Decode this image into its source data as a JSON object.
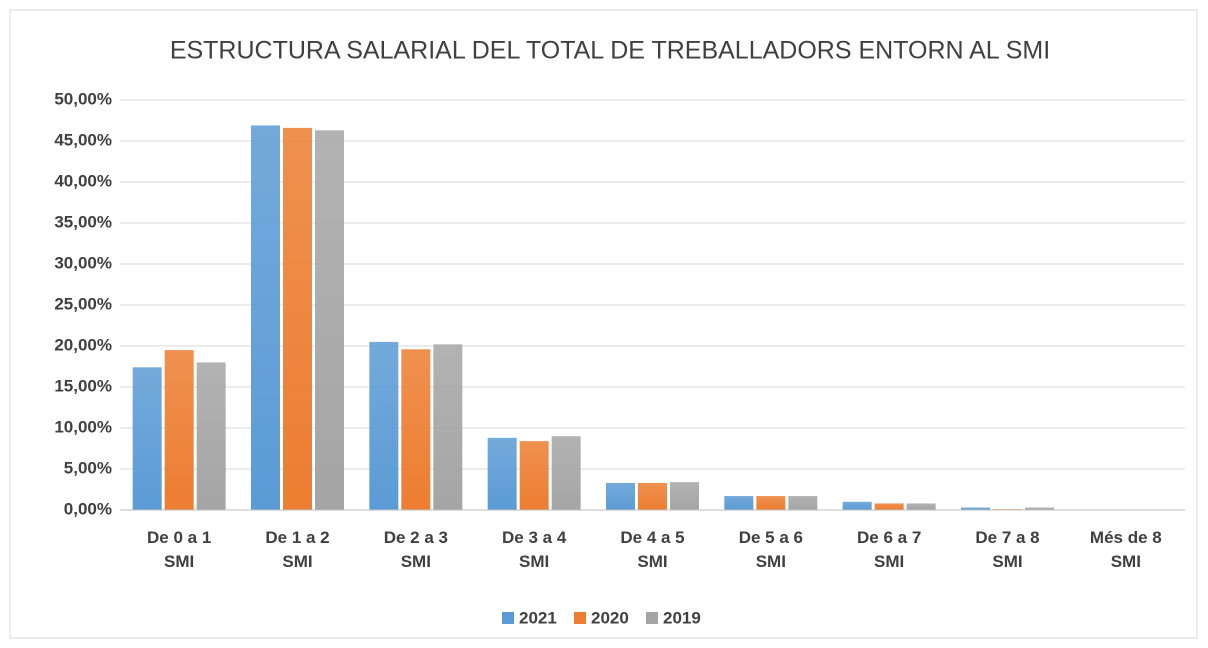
{
  "chart_data": {
    "type": "bar",
    "title": "ESTRUCTURA SALARIAL DEL TOTAL DE TREBALLADORS ENTORN AL SMI",
    "categories": [
      "De 0 a 1 SMI",
      "De 1 a 2 SMI",
      "De 2 a 3 SMI",
      "De 3 a 4 SMI",
      "De 4 a 5 SMI",
      "De 5 a 6 SMI",
      "De 6 a 7 SMI",
      "De 7 a 8 SMI",
      "Més de 8 SMI"
    ],
    "series": [
      {
        "name": "2021",
        "color": "#5b9bd5",
        "values": [
          17.4,
          46.9,
          20.5,
          8.8,
          3.3,
          1.7,
          1.0,
          0.3,
          0.05
        ]
      },
      {
        "name": "2020",
        "color": "#ed7d31",
        "values": [
          19.5,
          46.6,
          19.6,
          8.4,
          3.3,
          1.7,
          0.8,
          0.1,
          0.03
        ]
      },
      {
        "name": "2019",
        "color": "#a5a5a5",
        "values": [
          18.0,
          46.3,
          20.2,
          9.0,
          3.4,
          1.7,
          0.8,
          0.3,
          0.05
        ]
      }
    ],
    "ylim": [
      0,
      50
    ],
    "yticks": [
      {
        "value": 0,
        "label": "0,00%"
      },
      {
        "value": 5,
        "label": "5,00%"
      },
      {
        "value": 10,
        "label": "10,00%"
      },
      {
        "value": 15,
        "label": "15,00%"
      },
      {
        "value": 20,
        "label": "20,00%"
      },
      {
        "value": 25,
        "label": "25,00%"
      },
      {
        "value": 30,
        "label": "30,00%"
      },
      {
        "value": 35,
        "label": "35,00%"
      },
      {
        "value": 40,
        "label": "40,00%"
      },
      {
        "value": 45,
        "label": "45,00%"
      },
      {
        "value": 50,
        "label": "50,00%"
      }
    ],
    "grid": true,
    "legend": "bottom"
  }
}
